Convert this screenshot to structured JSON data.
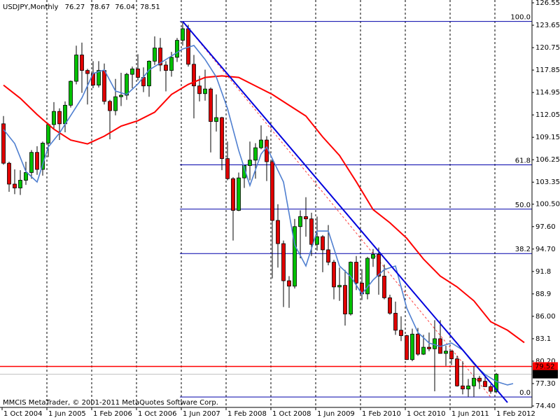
{
  "chart_data": {
    "type": "candlestick",
    "title": "USDJPY,Monthly",
    "footer": "MMCIS MetaTrader, © 2001-2011 MetaQuotes Software Corp.",
    "categories": [
      "1 Oct 2004",
      null,
      null,
      null,
      null,
      null,
      null,
      null,
      "1 Jun 2005",
      null,
      null,
      null,
      null,
      null,
      null,
      null,
      "1 Feb 2006",
      null,
      null,
      null,
      null,
      null,
      null,
      null,
      "1 Oct 2006",
      null,
      null,
      null,
      null,
      null,
      null,
      null,
      "1 Jun 2007",
      null,
      null,
      null,
      null,
      null,
      null,
      null,
      "1 Feb 2008",
      null,
      null,
      null,
      null,
      null,
      null,
      null,
      "1 Oct 2008",
      null,
      null,
      null,
      null,
      null,
      null,
      null,
      "1 Jun 2009",
      null,
      null,
      null,
      null,
      null,
      null,
      null,
      "1 Feb 2010",
      null,
      null,
      null,
      null,
      null,
      null,
      null,
      "1 Oct 2010",
      null,
      null,
      null,
      null,
      null,
      null,
      null,
      "1 Jun 2011",
      null,
      null,
      null,
      null,
      null,
      null,
      null,
      "1 Feb 2012"
    ],
    "open": [
      110.9,
      105.8,
      103.1,
      102.6,
      103.6,
      104.6,
      107.2,
      105.0,
      108.4,
      110.8,
      112.5,
      110.9,
      113.3,
      116.4,
      119.8,
      117.8,
      117.4,
      115.9,
      117.8,
      113.8,
      112.6,
      114.4,
      114.6,
      117.3,
      118.0,
      116.9,
      115.8,
      119.0,
      120.7,
      118.5,
      117.8,
      119.5,
      121.7,
      123.2,
      118.6,
      115.8,
      114.8,
      115.4,
      111.2,
      111.7,
      106.4,
      103.8,
      99.7,
      103.9,
      105.5,
      106.2,
      107.8,
      108.8,
      106.0,
      98.4,
      95.4,
      90.6,
      89.9,
      97.6,
      98.9,
      98.6,
      95.3,
      96.3,
      94.6,
      93.0,
      89.8,
      90.0,
      86.3,
      93.0,
      90.3,
      88.9,
      93.5,
      94.0,
      91.2,
      88.4,
      86.4,
      84.2,
      83.5,
      80.4,
      83.7,
      81.1,
      82.0,
      81.8,
      83.1,
      81.2,
      81.5,
      80.5,
      77.0,
      76.6,
      77.0,
      78.0,
      77.6,
      76.9,
      76.27
    ],
    "high": [
      111.9,
      106.0,
      105.0,
      104.9,
      106.0,
      107.5,
      108.0,
      108.6,
      111.0,
      113.7,
      112.9,
      113.8,
      116.5,
      121.0,
      121.4,
      118.0,
      119.0,
      119.0,
      118.7,
      114.0,
      116.7,
      117.5,
      117.5,
      118.3,
      119.9,
      118.2,
      119.1,
      122.2,
      122.0,
      119.0,
      120.2,
      122.0,
      124.1,
      123.7,
      119.8,
      117.1,
      117.9,
      115.6,
      114.7,
      111.8,
      108.6,
      104.0,
      104.6,
      105.5,
      108.6,
      108.4,
      110.7,
      109.3,
      106.4,
      100.5,
      95.8,
      91.2,
      98.6,
      99.7,
      101.4,
      99.4,
      98.9,
      96.5,
      97.8,
      93.3,
      92.3,
      92.0,
      93.1,
      93.8,
      92.1,
      93.7,
      94.7,
      94.9,
      92.7,
      88.8,
      87.9,
      86.0,
      83.6,
      84.4,
      84.5,
      83.6,
      83.9,
      85.5,
      85.5,
      82.2,
      81.6,
      80.9,
      80.2,
      77.9,
      79.5,
      78.3,
      78.3,
      77.2,
      78.67
    ],
    "low": [
      105.6,
      102.1,
      101.8,
      101.7,
      103.0,
      103.8,
      104.3,
      104.2,
      106.6,
      110.2,
      108.8,
      109.8,
      113.0,
      116.0,
      114.9,
      113.4,
      115.5,
      115.6,
      113.4,
      108.9,
      112.0,
      113.2,
      114.0,
      115.5,
      116.5,
      115.0,
      114.4,
      118.5,
      117.7,
      115.1,
      117.0,
      118.9,
      121.0,
      118.3,
      111.6,
      113.8,
      113.9,
      107.2,
      109.9,
      104.9,
      103.6,
      95.8,
      99.6,
      102.6,
      103.6,
      103.8,
      107.6,
      103.5,
      90.9,
      92.3,
      87.2,
      87.1,
      89.6,
      93.5,
      96.3,
      93.8,
      94.5,
      91.7,
      92.6,
      88.2,
      88.0,
      84.8,
      86.1,
      89.4,
      88.1,
      88.2,
      92.4,
      88.8,
      88.2,
      86.2,
      83.6,
      82.8,
      80.4,
      80.2,
      80.9,
      81.0,
      81.5,
      76.3,
      81.2,
      79.6,
      79.7,
      76.9,
      75.9,
      75.6,
      75.6,
      76.6,
      76.9,
      76.0,
      76.04
    ],
    "close": [
      105.8,
      103.1,
      102.6,
      103.6,
      104.6,
      107.2,
      105.0,
      108.4,
      110.8,
      112.5,
      110.9,
      113.3,
      116.4,
      119.8,
      117.8,
      117.4,
      115.9,
      117.8,
      113.8,
      112.6,
      114.4,
      114.6,
      117.3,
      118.0,
      116.9,
      115.8,
      119.0,
      120.7,
      118.5,
      117.8,
      119.5,
      121.7,
      123.2,
      118.6,
      115.8,
      114.8,
      115.4,
      111.2,
      111.7,
      106.4,
      103.8,
      99.7,
      103.9,
      105.5,
      106.2,
      107.8,
      108.8,
      106.0,
      98.4,
      95.4,
      90.6,
      89.9,
      97.6,
      98.9,
      98.6,
      95.3,
      96.3,
      94.6,
      93.0,
      89.8,
      90.0,
      86.3,
      93.0,
      90.3,
      88.9,
      93.5,
      94.0,
      91.2,
      88.4,
      86.4,
      84.2,
      83.5,
      80.4,
      83.7,
      81.1,
      82.0,
      81.8,
      83.1,
      81.2,
      81.5,
      80.5,
      77.0,
      76.6,
      77.0,
      78.0,
      77.6,
      76.9,
      76.3,
      78.51
    ],
    "up_color": "#00c000",
    "down_color": "#e00000",
    "ylim": [
      74.4,
      126.55
    ],
    "yticks": [
      126.55,
      123.65,
      120.75,
      117.85,
      114.95,
      112.05,
      109.15,
      106.25,
      103.35,
      {
        "value": 100.5,
        "label": "100.50"
      },
      {
        "value": 97.6,
        "label": "97.60"
      },
      {
        "value": 94.7,
        "label": "94.70"
      },
      91.8,
      88.9,
      {
        "value": 86.0,
        "label": "86.00"
      },
      83.1,
      {
        "value": 80.2,
        "label": "80.20"
      },
      {
        "value": 77.3,
        "label": "77.30"
      },
      {
        "value": 74.4,
        "label": "74.40"
      }
    ],
    "ma_lines": [
      {
        "color": "#ff0000",
        "x": [
          0,
          3,
          6,
          9,
          12,
          15,
          18,
          21,
          24,
          27,
          30,
          33,
          36,
          39,
          42,
          45,
          48,
          51,
          54,
          57,
          60,
          63,
          66,
          69,
          72,
          75,
          78,
          81,
          84,
          87,
          90,
          93
        ],
        "values": [
          115.9,
          114.2,
          112.1,
          110.2,
          108.8,
          108.3,
          109.3,
          110.6,
          111.3,
          112.4,
          114.7,
          116.0,
          116.9,
          117.1,
          116.9,
          115.8,
          114.7,
          113.3,
          111.9,
          109.2,
          106.8,
          103.4,
          99.8,
          98.1,
          96.1,
          93.4,
          91.2,
          89.8,
          88.0,
          85.3,
          84.2,
          82.6
        ]
      },
      {
        "color": "#4f7fd0",
        "x": [
          0,
          2,
          4,
          6,
          8,
          10,
          12,
          14,
          16,
          18,
          20,
          22,
          24,
          26,
          28,
          30,
          32,
          34,
          36,
          38,
          40,
          42,
          44,
          46,
          47,
          50,
          52,
          54,
          56,
          58,
          60,
          62,
          64,
          66,
          68,
          70,
          72,
          74,
          76,
          78,
          80,
          82,
          84,
          86,
          88,
          90,
          91
        ],
        "values": [
          110.16,
          108.35,
          104.73,
          103.37,
          107.9,
          109.71,
          111.97,
          114.24,
          117.41,
          117.86,
          115.14,
          114.69,
          116.05,
          117.86,
          118.76,
          119.67,
          120.58,
          121.03,
          119.22,
          116.95,
          112.88,
          107.45,
          102.92,
          106.99,
          107.9,
          103.37,
          95.22,
          92.51,
          97.03,
          97.03,
          92.51,
          91.15,
          88.89,
          90.7,
          92.05,
          92.51,
          87.08,
          83.91,
          82.55,
          82.1,
          82.55,
          81.64,
          79.83,
          78.47,
          77.57,
          77.12,
          77.3
        ]
      }
    ],
    "trendline": {
      "color": "#0000dd",
      "x": [
        32,
        90
      ],
      "values": [
        124.14,
        74.85
      ]
    },
    "fibo": {
      "color": "#0000aa",
      "diagonal_color": "#ff4040",
      "x": [
        32,
        87
      ],
      "levels": [
        {
          "label": "100.0",
          "value": 124.14
        },
        {
          "label": "61.8",
          "value": 105.59
        },
        {
          "label": "50.0",
          "value": 99.86
        },
        {
          "label": "38.2",
          "value": 94.12
        },
        {
          "label": "0.0",
          "value": 75.57
        }
      ]
    },
    "hline": {
      "value": 79.52,
      "color": "#ff0000"
    },
    "grid": true
  }
}
